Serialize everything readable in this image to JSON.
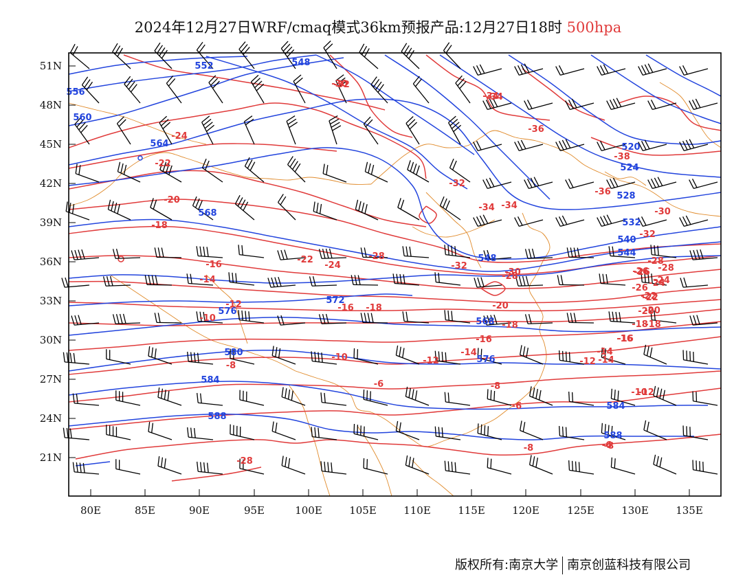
{
  "title": {
    "main": "2024年12月27日WRF/cmaq模式36km预报产品:12月27日18时",
    "level": "500hpa"
  },
  "axes": {
    "x_ticks": [
      "80E",
      "85E",
      "90E",
      "95E",
      "100E",
      "105E",
      "110E",
      "115E",
      "120E",
      "125E",
      "130E",
      "135E"
    ],
    "y_ticks": [
      "51N",
      "48N",
      "45N",
      "42N",
      "39N",
      "36N",
      "33N",
      "30N",
      "27N",
      "24N",
      "21N"
    ]
  },
  "colors": {
    "height_contour": "#2244dd",
    "temperature_contour": "#e03a3a",
    "boundary": "#e08a2a",
    "wind_barb": "#000000"
  },
  "height_labels": [
    "552",
    "548",
    "556",
    "560",
    "564",
    "568",
    "520",
    "524",
    "528",
    "532",
    "540",
    "544",
    "548",
    "572",
    "576",
    "580",
    "584",
    "588",
    "568",
    "576",
    "584",
    "588"
  ],
  "temperature_labels": [
    "-30",
    "-34",
    "-36",
    "-38",
    "-36",
    "-32",
    "-34",
    "-34",
    "-26",
    "-28",
    "-24",
    "-22",
    "-20",
    "-18",
    "-16",
    "-14",
    "-12",
    "-10",
    "-8",
    "-6",
    "-28",
    "-30",
    "-32",
    "-34",
    "-30",
    "-28",
    "-26",
    "-24",
    "-22",
    "-20",
    "-18",
    "-16",
    "-14",
    "-12",
    "-10",
    "-8",
    "-6",
    "-22",
    "-24",
    "-28",
    "-32",
    "-16",
    "-18",
    "-20",
    "-18",
    "-16",
    "-14",
    "-12",
    "-10",
    "-8",
    "-6",
    "-32",
    "-28",
    "-26",
    "-24",
    "-22",
    "-20",
    "-18",
    "-16",
    "-14",
    "-12",
    "-8",
    "-6"
  ],
  "credit": {
    "left": "版权所有:南京大学",
    "right": "南京创蓝科技有限公司"
  }
}
